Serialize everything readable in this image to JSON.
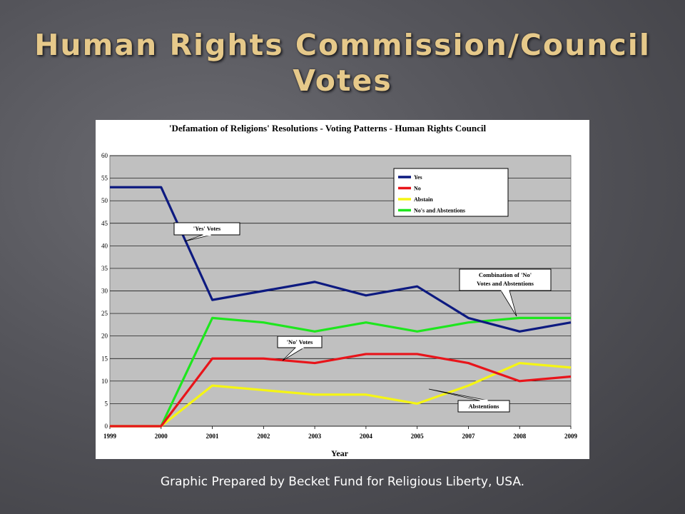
{
  "slide": {
    "title_line1": "Human Rights Commission/Council",
    "title_line2": "Votes",
    "caption": "Graphic Prepared by Becket Fund for Religious Liberty, USA."
  },
  "chart_data": {
    "type": "line",
    "title": "'Defamation of Religions' Resolutions - Voting Patterns - Human Rights Council",
    "xlabel": "Year",
    "ylabel": "",
    "categories": [
      "1999",
      "2000",
      "2001",
      "2002",
      "2003",
      "2004",
      "2005",
      "2007",
      "2008",
      "2009"
    ],
    "ylim": [
      0,
      60
    ],
    "yticks": [
      0,
      5,
      10,
      15,
      20,
      25,
      30,
      35,
      40,
      45,
      50,
      55,
      60
    ],
    "grid": true,
    "legend_position": "top-right",
    "plot_background": "#c0c0c0",
    "series": [
      {
        "name": "Yes",
        "color": "#0d1a80",
        "values": [
          53,
          53,
          28,
          30,
          32,
          29,
          31,
          24,
          21,
          23
        ]
      },
      {
        "name": "No",
        "color": "#e8141a",
        "values": [
          0,
          0,
          15,
          15,
          14,
          16,
          16,
          14,
          10,
          11
        ]
      },
      {
        "name": "Abstain",
        "color": "#f5f514",
        "values": [
          0,
          0,
          9,
          8,
          7,
          7,
          5,
          9,
          14,
          13
        ]
      },
      {
        "name": "No's and Abstentions",
        "color": "#1ee61e",
        "values": [
          0,
          0,
          24,
          23,
          21,
          23,
          21,
          23,
          24,
          24
        ]
      }
    ],
    "annotations": [
      {
        "text": [
          "'Yes' Votes"
        ]
      },
      {
        "text": [
          "'No' Votes"
        ]
      },
      {
        "text": [
          "Combination of 'No'",
          "Votes and Abstentions"
        ]
      },
      {
        "text": [
          "Abstentions"
        ]
      }
    ]
  }
}
